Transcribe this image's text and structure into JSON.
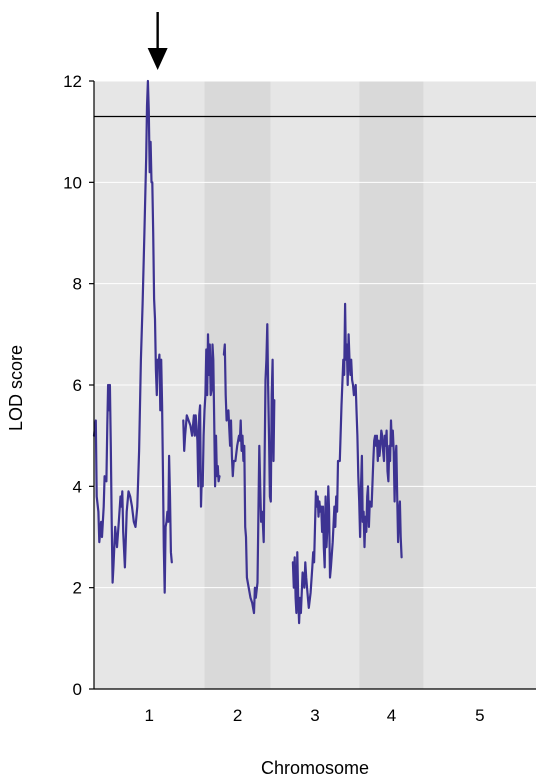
{
  "chart_data": {
    "type": "line",
    "xlabel": "Chromosome",
    "ylabel": "LOD score",
    "ylim": [
      0,
      12
    ],
    "yticks": [
      0,
      2,
      4,
      6,
      8,
      10,
      12
    ],
    "xlim": [
      0,
      500
    ],
    "grid": true,
    "threshold": 11.3,
    "peak_marker_x": 72,
    "chromosomes": [
      {
        "label": "1",
        "start": 0,
        "end": 125,
        "shaded": false
      },
      {
        "label": "2",
        "start": 125,
        "end": 200,
        "shaded": true
      },
      {
        "label": "3",
        "start": 200,
        "end": 300,
        "shaded": false
      },
      {
        "label": "4",
        "start": 300,
        "end": 373,
        "shaded": true
      },
      {
        "label": "5",
        "start": 373,
        "end": 500,
        "shaded": false
      }
    ],
    "series": [
      {
        "color": "#3d3392",
        "segments": [
          [
            [
              0,
              5.0
            ],
            [
              2,
              5.3
            ],
            [
              3,
              3.8
            ],
            [
              5,
              3.5
            ],
            [
              6,
              2.9
            ],
            [
              8,
              3.3
            ],
            [
              9,
              3.0
            ],
            [
              11,
              3.6
            ],
            [
              12,
              4.2
            ],
            [
              14,
              4.1
            ],
            [
              15,
              5.2
            ],
            [
              16,
              6.0
            ],
            [
              17,
              5.5
            ],
            [
              18,
              6.0
            ],
            [
              19,
              4.8
            ],
            [
              20,
              3.3
            ],
            [
              21,
              2.1
            ],
            [
              22,
              2.4
            ],
            [
              24,
              3.2
            ],
            [
              26,
              2.8
            ],
            [
              28,
              3.3
            ],
            [
              30,
              3.8
            ],
            [
              31,
              3.6
            ],
            [
              32,
              3.9
            ],
            [
              33,
              3.1
            ],
            [
              35,
              2.4
            ],
            [
              37,
              3.5
            ],
            [
              39,
              3.9
            ],
            [
              41,
              3.8
            ],
            [
              43,
              3.6
            ],
            [
              45,
              3.3
            ],
            [
              47,
              3.2
            ],
            [
              49,
              3.6
            ],
            [
              51,
              4.7
            ],
            [
              53,
              6.5
            ],
            [
              55,
              7.6
            ],
            [
              57,
              9.0
            ],
            [
              59,
              10.5
            ],
            [
              60,
              11.5
            ],
            [
              61,
              12.0
            ],
            [
              62,
              11.4
            ],
            [
              63,
              10.2
            ],
            [
              64,
              10.8
            ],
            [
              65,
              10.0
            ],
            [
              66,
              10.0
            ],
            [
              67,
              9.0
            ],
            [
              68,
              7.7
            ],
            [
              69,
              7.3
            ],
            [
              70,
              6.3
            ],
            [
              71,
              5.8
            ],
            [
              72,
              6.5
            ],
            [
              73,
              6.4
            ],
            [
              74,
              6.6
            ],
            [
              75,
              5.5
            ],
            [
              76,
              6.5
            ],
            [
              77,
              5.6
            ],
            [
              78,
              4.2
            ],
            [
              79,
              2.8
            ],
            [
              80,
              1.9
            ],
            [
              81,
              3.2
            ],
            [
              82,
              3.3
            ],
            [
              83,
              3.5
            ],
            [
              84,
              3.3
            ],
            [
              85,
              4.6
            ],
            [
              86,
              3.8
            ],
            [
              87,
              2.7
            ],
            [
              88,
              2.5
            ]
          ],
          [
            [
              101,
              5.3
            ],
            [
              102,
              4.7
            ],
            [
              103,
              5.0
            ],
            [
              105,
              5.4
            ],
            [
              107,
              5.3
            ],
            [
              109,
              5.2
            ],
            [
              111,
              5.0
            ],
            [
              113,
              5.4
            ],
            [
              114,
              5.0
            ],
            [
              115,
              5.4
            ],
            [
              116,
              5.2
            ],
            [
              117,
              4.9
            ],
            [
              118,
              4.0
            ],
            [
              119,
              5.4
            ],
            [
              120,
              5.6
            ],
            [
              121,
              3.6
            ],
            [
              122,
              4.2
            ],
            [
              123,
              4.0
            ],
            [
              124,
              5.0
            ],
            [
              125,
              5.5
            ],
            [
              126,
              5.8
            ],
            [
              127,
              6.7
            ],
            [
              128,
              5.8
            ],
            [
              129,
              7.0
            ],
            [
              130,
              6.2
            ],
            [
              131,
              6.8
            ],
            [
              132,
              5.8
            ],
            [
              133,
              5.9
            ],
            [
              134,
              6.8
            ],
            [
              135,
              6.5
            ],
            [
              136,
              5.3
            ],
            [
              137,
              4.0
            ],
            [
              138,
              5.0
            ],
            [
              139,
              4.2
            ],
            [
              140,
              4.4
            ],
            [
              141,
              4.1
            ],
            [
              142,
              4.2
            ]
          ],
          [
            [
              147,
              6.6
            ],
            [
              148,
              6.8
            ],
            [
              149,
              5.8
            ],
            [
              150,
              5.3
            ],
            [
              152,
              5.5
            ],
            [
              154,
              4.8
            ],
            [
              155,
              5.3
            ],
            [
              156,
              4.6
            ],
            [
              157,
              4.2
            ],
            [
              158,
              4.5
            ],
            [
              160,
              4.5
            ],
            [
              162,
              4.8
            ],
            [
              164,
              5.0
            ],
            [
              165,
              4.9
            ],
            [
              166,
              5.3
            ],
            [
              167,
              4.7
            ],
            [
              168,
              5.0
            ],
            [
              169,
              4.5
            ],
            [
              170,
              4.8
            ],
            [
              171,
              3.2
            ],
            [
              172,
              3.0
            ],
            [
              173,
              2.2
            ],
            [
              175,
              2.0
            ],
            [
              177,
              1.8
            ],
            [
              179,
              1.7
            ],
            [
              181,
              1.5
            ],
            [
              182,
              2.0
            ],
            [
              183,
              1.8
            ],
            [
              185,
              2.1
            ],
            [
              187,
              4.8
            ],
            [
              188,
              4.0
            ],
            [
              189,
              3.3
            ],
            [
              190,
              3.5
            ],
            [
              191,
              3.3
            ],
            [
              192,
              2.9
            ],
            [
              193,
              4.5
            ],
            [
              194,
              6.1
            ],
            [
              195,
              6.5
            ],
            [
              196,
              7.2
            ],
            [
              197,
              6.0
            ],
            [
              198,
              5.0
            ],
            [
              199,
              3.8
            ],
            [
              200,
              3.7
            ],
            [
              201,
              5.8
            ],
            [
              202,
              6.5
            ],
            [
              203,
              4.5
            ],
            [
              204,
              5.7
            ]
          ],
          [
            [
              225,
              2.5
            ],
            [
              226,
              2.0
            ],
            [
              227,
              2.6
            ],
            [
              228,
              1.8
            ],
            [
              229,
              1.5
            ],
            [
              230,
              2.7
            ],
            [
              231,
              1.8
            ],
            [
              232,
              1.3
            ],
            [
              233,
              1.8
            ],
            [
              234,
              1.5
            ],
            [
              236,
              2.3
            ],
            [
              238,
              2.0
            ],
            [
              239,
              2.5
            ],
            [
              240,
              2.2
            ],
            [
              242,
              1.8
            ],
            [
              243,
              1.6
            ],
            [
              245,
              1.9
            ],
            [
              247,
              2.4
            ],
            [
              248,
              2.7
            ],
            [
              249,
              2.5
            ],
            [
              251,
              3.9
            ],
            [
              252,
              3.6
            ],
            [
              253,
              3.8
            ],
            [
              254,
              3.4
            ],
            [
              255,
              3.7
            ],
            [
              256,
              3.5
            ],
            [
              257,
              3.6
            ],
            [
              258,
              3.1
            ],
            [
              259,
              3.6
            ],
            [
              260,
              2.8
            ],
            [
              261,
              2.4
            ],
            [
              262,
              3.8
            ],
            [
              263,
              2.8
            ],
            [
              264,
              3.2
            ],
            [
              265,
              4.0
            ],
            [
              266,
              3.5
            ],
            [
              267,
              2.2
            ],
            [
              268,
              2.4
            ],
            [
              270,
              2.9
            ],
            [
              272,
              3.6
            ],
            [
              273,
              3.2
            ],
            [
              274,
              3.8
            ],
            [
              275,
              3.5
            ],
            [
              276,
              4.5
            ],
            [
              278,
              4.5
            ],
            [
              280,
              5.6
            ],
            [
              282,
              6.5
            ],
            [
              283,
              6.2
            ],
            [
              284,
              7.6
            ],
            [
              285,
              6.5
            ],
            [
              286,
              6.8
            ],
            [
              287,
              6.0
            ],
            [
              288,
              7.0
            ],
            [
              289,
              6.5
            ],
            [
              290,
              6.2
            ],
            [
              291,
              6.5
            ],
            [
              292,
              6.1
            ],
            [
              293,
              6.0
            ],
            [
              294,
              5.8
            ],
            [
              296,
              6.0
            ],
            [
              297,
              5.5
            ],
            [
              298,
              5.0
            ],
            [
              299,
              4.2
            ],
            [
              300,
              3.7
            ],
            [
              301,
              3.0
            ],
            [
              302,
              4.0
            ],
            [
              303,
              4.6
            ],
            [
              304,
              3.3
            ],
            [
              305,
              3.5
            ],
            [
              306,
              2.8
            ],
            [
              307,
              3.4
            ],
            [
              308,
              3.1
            ],
            [
              309,
              3.8
            ],
            [
              310,
              4.0
            ],
            [
              311,
              3.2
            ],
            [
              312,
              3.7
            ],
            [
              314,
              3.6
            ],
            [
              316,
              4.5
            ],
            [
              317,
              4.9
            ],
            [
              318,
              5.0
            ],
            [
              319,
              4.8
            ],
            [
              320,
              5.0
            ],
            [
              321,
              4.5
            ],
            [
              322,
              4.9
            ],
            [
              323,
              4.6
            ],
            [
              324,
              4.8
            ],
            [
              325,
              5.1
            ],
            [
              326,
              5.0
            ],
            [
              327,
              4.7
            ],
            [
              328,
              4.5
            ],
            [
              329,
              5.0
            ],
            [
              330,
              4.8
            ],
            [
              331,
              5.1
            ],
            [
              332,
              4.3
            ],
            [
              333,
              4.1
            ],
            [
              334,
              4.8
            ],
            [
              335,
              4.5
            ],
            [
              336,
              5.3
            ],
            [
              337,
              4.8
            ],
            [
              338,
              5.1
            ],
            [
              339,
              4.7
            ],
            [
              340,
              3.7
            ],
            [
              341,
              4.5
            ],
            [
              342,
              4.8
            ],
            [
              343,
              3.8
            ],
            [
              344,
              2.9
            ],
            [
              345,
              3.5
            ],
            [
              346,
              3.7
            ],
            [
              347,
              3.0
            ],
            [
              348,
              2.6
            ]
          ]
        ]
      }
    ]
  }
}
